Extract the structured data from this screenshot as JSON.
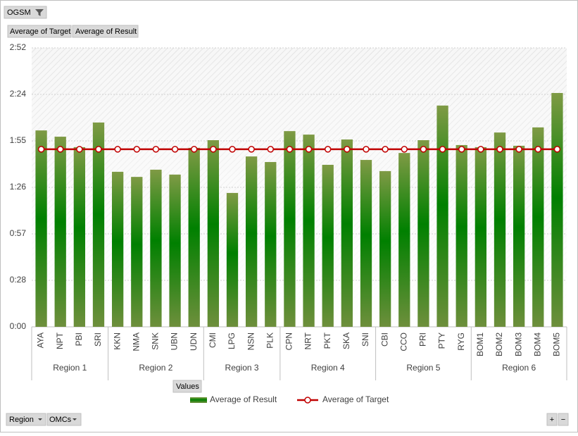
{
  "buttons": {
    "filter": "OGSM",
    "target": "Average of Target",
    "result": "Average of Result",
    "values": "Values",
    "region": "Region",
    "omcs": "OMCs",
    "plus": "+",
    "minus": "−"
  },
  "chart_data": {
    "type": "bar",
    "groups": [
      {
        "name": "Region 1",
        "categories": [
          "AYA",
          "NPT",
          "PBI",
          "SRI"
        ]
      },
      {
        "name": "Region 2",
        "categories": [
          "KKN",
          "NMA",
          "SNK",
          "UBN",
          "UDN"
        ]
      },
      {
        "name": "Region 3",
        "categories": [
          "CMI",
          "LPG",
          "NSN",
          "PLK"
        ]
      },
      {
        "name": "Region 4",
        "categories": [
          "CPN",
          "NRT",
          "PKT",
          "SKA",
          "SNI"
        ]
      },
      {
        "name": "Region 5",
        "categories": [
          "CBI",
          "CCO",
          "PRI",
          "PTY",
          "RYG"
        ]
      },
      {
        "name": "Region 6",
        "categories": [
          "BOM1",
          "BOM2",
          "BOM3",
          "BOM4",
          "BOM5"
        ]
      }
    ],
    "series": [
      {
        "name": "Average of Result",
        "type": "bar",
        "color": "#008000",
        "values": [
          0.0845,
          0.0818,
          0.0773,
          0.0879,
          0.0667,
          0.0645,
          0.0676,
          0.0655,
          0.077,
          0.0803,
          0.0576,
          0.0733,
          0.0709,
          0.0842,
          0.0827,
          0.0697,
          0.0806,
          0.0718,
          0.067,
          0.0748,
          0.0803,
          0.0952,
          0.0782,
          0.0773,
          0.0836,
          0.0779,
          0.0858,
          0.1006
        ]
      },
      {
        "name": "Average of Target",
        "type": "line",
        "color": "#c00000",
        "values": [
          0.0764,
          0.0764,
          0.0764,
          0.0764,
          0.0764,
          0.0764,
          0.0764,
          0.0764,
          0.0764,
          0.0764,
          0.0764,
          0.0764,
          0.0764,
          0.0764,
          0.0764,
          0.0764,
          0.0764,
          0.0764,
          0.0764,
          0.0764,
          0.0764,
          0.0764,
          0.0764,
          0.0764,
          0.0764,
          0.0764,
          0.0764,
          0.0764
        ]
      }
    ],
    "ylim": [
      0,
      0.12
    ],
    "yticks": [
      {
        "value": 0,
        "label": "0:00"
      },
      {
        "value": 0.02,
        "label": "0:28"
      },
      {
        "value": 0.04,
        "label": "0:57"
      },
      {
        "value": 0.06,
        "label": "1:26"
      },
      {
        "value": 0.08,
        "label": "1:55"
      },
      {
        "value": 0.1,
        "label": "2:24"
      },
      {
        "value": 0.12,
        "label": "2:52"
      }
    ],
    "grid": true,
    "legend": "bottom"
  }
}
